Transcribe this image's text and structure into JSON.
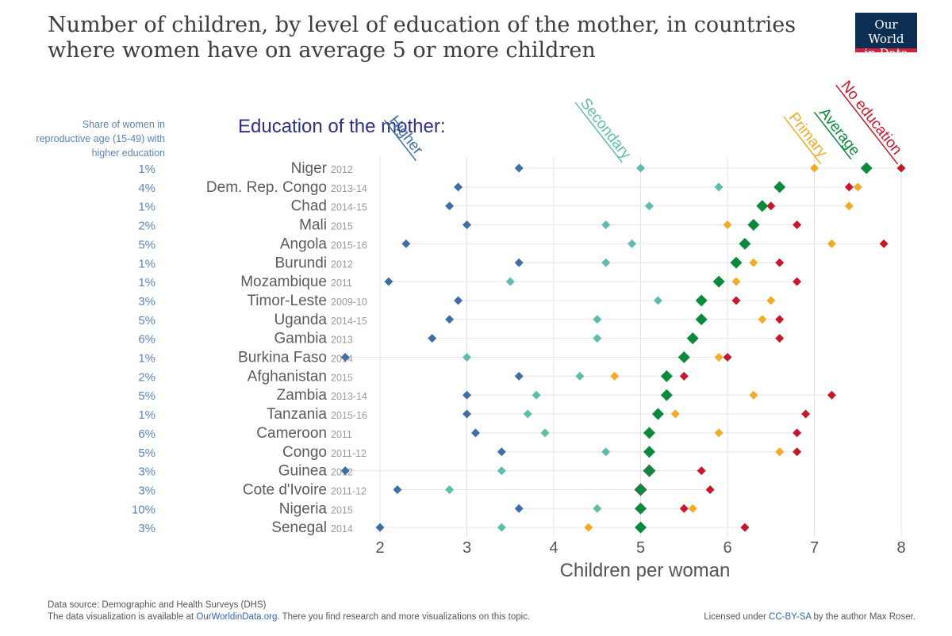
{
  "title": "Number of children, by level of education of the mother, in countries where women have on average 5 or more children",
  "logo": {
    "line1": "Our World",
    "line2": "in Data"
  },
  "share_header": "Share of women in reproductive age (15-49) with higher education",
  "legend_title": "Education of the mother:",
  "colors": {
    "higher": "#3e6ea6",
    "secondary": "#5fbcab",
    "primary": "#f0ac27",
    "average": "#0b8a3c",
    "no_education": "#c5182c"
  },
  "chart_data": {
    "type": "scatter",
    "title": "Number of children, by level of education of the mother, in countries where women have on average 5 or more children",
    "xlabel": "Children per woman",
    "xlim": [
      2,
      8
    ],
    "xticks": [
      2,
      3,
      4,
      5,
      6,
      7,
      8
    ],
    "grid": true,
    "legend": [
      "Higher",
      "Secondary",
      "Primary",
      "Average",
      "No education"
    ],
    "rows": [
      {
        "country": "Niger",
        "year": "2012",
        "share": "1%",
        "higher": 3.6,
        "secondary": 5.0,
        "primary": 7.0,
        "average": 7.6,
        "no_education": 8.0
      },
      {
        "country": "Dem. Rep. Congo",
        "year": "2013-14",
        "share": "4%",
        "higher": 2.9,
        "secondary": 5.9,
        "primary": 7.5,
        "average": 6.6,
        "no_education": 7.4
      },
      {
        "country": "Chad",
        "year": "2014-15",
        "share": "1%",
        "higher": 2.8,
        "secondary": 5.1,
        "primary": 7.4,
        "average": 6.4,
        "no_education": 6.5
      },
      {
        "country": "Mali",
        "year": "2015",
        "share": "2%",
        "higher": 3.0,
        "secondary": 4.6,
        "primary": 6.0,
        "average": 6.3,
        "no_education": 6.8
      },
      {
        "country": "Angola",
        "year": "2015-16",
        "share": "5%",
        "higher": 2.3,
        "secondary": 4.9,
        "primary": 7.2,
        "average": 6.2,
        "no_education": 7.8
      },
      {
        "country": "Burundi",
        "year": "2012",
        "share": "1%",
        "higher": 3.6,
        "secondary": 4.6,
        "primary": 6.3,
        "average": 6.1,
        "no_education": 6.6
      },
      {
        "country": "Mozambique",
        "year": "2011",
        "share": "1%",
        "higher": 2.1,
        "secondary": 3.5,
        "primary": 6.1,
        "average": 5.9,
        "no_education": 6.8
      },
      {
        "country": "Timor-Leste",
        "year": "2009-10",
        "share": "3%",
        "higher": 2.9,
        "secondary": 5.2,
        "primary": 6.5,
        "average": 5.7,
        "no_education": 6.1
      },
      {
        "country": "Uganda",
        "year": "2014-15",
        "share": "5%",
        "higher": 2.8,
        "secondary": 4.5,
        "primary": 6.4,
        "average": 5.7,
        "no_education": 6.6
      },
      {
        "country": "Gambia",
        "year": "2013",
        "share": "6%",
        "higher": 2.6,
        "secondary": 4.5,
        "primary": null,
        "average": 5.6,
        "no_education": 6.6
      },
      {
        "country": "Burkina Faso",
        "year": "2014",
        "share": "1%",
        "higher": 1.6,
        "secondary": 3.0,
        "primary": 5.9,
        "average": 5.5,
        "no_education": 6.0
      },
      {
        "country": "Afghanistan",
        "year": "2015",
        "share": "2%",
        "higher": 3.6,
        "secondary": 4.3,
        "primary": 4.7,
        "average": 5.3,
        "no_education": 5.5
      },
      {
        "country": "Zambia",
        "year": "2013-14",
        "share": "5%",
        "higher": 3.0,
        "secondary": 3.8,
        "primary": 6.3,
        "average": 5.3,
        "no_education": 7.2
      },
      {
        "country": "Tanzania",
        "year": "2015-16",
        "share": "1%",
        "higher": 3.0,
        "secondary": 3.7,
        "primary": 5.4,
        "average": 5.2,
        "no_education": 6.9
      },
      {
        "country": "Cameroon",
        "year": "2011",
        "share": "6%",
        "higher": 3.1,
        "secondary": 3.9,
        "primary": 5.9,
        "average": 5.1,
        "no_education": 6.8
      },
      {
        "country": "Congo",
        "year": "2011-12",
        "share": "5%",
        "higher": 3.4,
        "secondary": 4.6,
        "primary": 6.6,
        "average": 5.1,
        "no_education": 6.8
      },
      {
        "country": "Guinea",
        "year": "2012",
        "share": "3%",
        "higher": 1.6,
        "secondary": 3.4,
        "primary": 5.1,
        "average": 5.1,
        "no_education": 5.7
      },
      {
        "country": "Cote d'Ivoire",
        "year": "2011-12",
        "share": "3%",
        "higher": 2.2,
        "secondary": 2.8,
        "primary": 5.0,
        "average": 5.0,
        "no_education": 5.8
      },
      {
        "country": "Nigeria",
        "year": "2015",
        "share": "10%",
        "higher": 3.6,
        "secondary": 4.5,
        "primary": 5.6,
        "average": 5.0,
        "no_education": 5.5
      },
      {
        "country": "Senegal",
        "year": "2014",
        "share": "3%",
        "higher": 2.0,
        "secondary": 3.4,
        "primary": 4.4,
        "average": 5.0,
        "no_education": 6.2
      }
    ]
  },
  "footer": {
    "source": "Data source: Demographic and Health Surveys (DHS)",
    "note_prefix": "The data visualization is available at ",
    "note_link": "OurWorldinData.org",
    "note_suffix": ". There you find research and more visualizations on this topic.",
    "license_prefix": "Licensed under ",
    "license_link": "CC-BY-SA",
    "license_suffix": " by the author Max Roser."
  }
}
